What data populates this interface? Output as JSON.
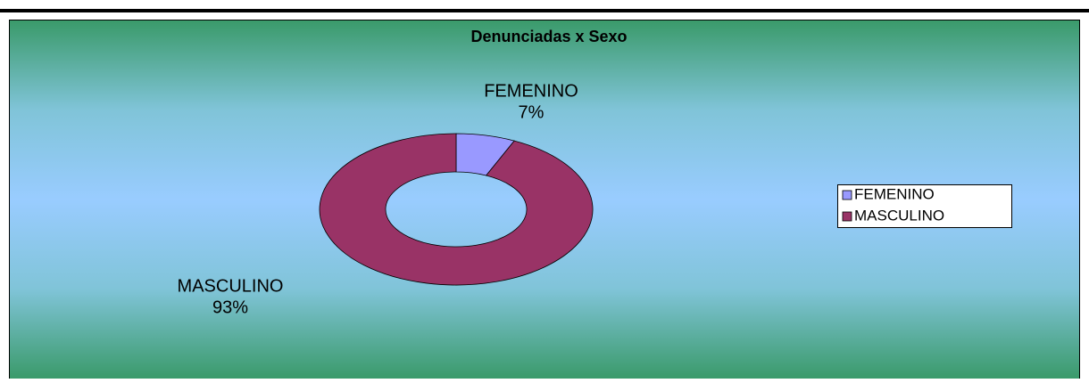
{
  "chart_data": {
    "type": "donut",
    "title": "Denunciadas x Sexo",
    "categories": [
      "FEMENINO",
      "MASCULINO"
    ],
    "values": [
      7,
      93
    ],
    "value_labels": [
      "7%",
      "93%"
    ],
    "colors": [
      "#9999ff",
      "#993366"
    ],
    "legend": "right"
  }
}
